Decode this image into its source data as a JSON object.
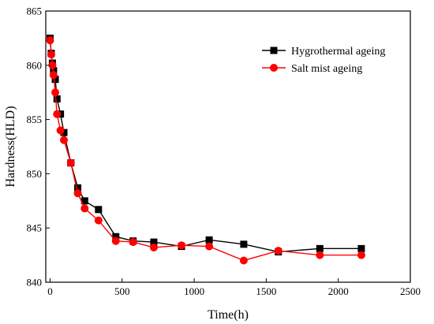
{
  "chart_data": {
    "type": "line",
    "title": "",
    "xlabel": "Time(h)",
    "ylabel": "Hardness(HLD)",
    "xlim": [
      -30,
      2500
    ],
    "ylim": [
      840,
      865
    ],
    "xticks": [
      0,
      500,
      1000,
      1500,
      2000,
      2500
    ],
    "yticks": [
      840,
      845,
      850,
      855,
      860,
      865
    ],
    "grid": false,
    "legend": "top-right",
    "series": [
      {
        "name": "Hygrothermal ageing",
        "color": "#000000",
        "marker": "square",
        "x": [
          0,
          8,
          16,
          24,
          36,
          48,
          72,
          96,
          144,
          192,
          240,
          336,
          456,
          576,
          720,
          912,
          1104,
          1344,
          1584,
          1872,
          2160
        ],
        "y": [
          862.5,
          861.1,
          860.2,
          859.5,
          858.7,
          856.9,
          855.5,
          853.8,
          851.0,
          848.7,
          847.5,
          846.7,
          844.2,
          843.8,
          843.7,
          843.3,
          843.9,
          843.5,
          842.8,
          843.1,
          843.1
        ]
      },
      {
        "name": "Salt mist ageing",
        "color": "#ff0000",
        "marker": "circle",
        "x": [
          0,
          8,
          16,
          24,
          36,
          48,
          72,
          96,
          144,
          192,
          240,
          336,
          456,
          576,
          720,
          912,
          1104,
          1344,
          1584,
          1872,
          2160
        ],
        "y": [
          862.3,
          861.0,
          860.0,
          859.1,
          857.5,
          855.5,
          854.0,
          853.1,
          851.0,
          848.2,
          846.8,
          845.7,
          843.8,
          843.7,
          843.2,
          843.4,
          843.3,
          842.0,
          842.9,
          842.5,
          842.5
        ]
      }
    ]
  }
}
